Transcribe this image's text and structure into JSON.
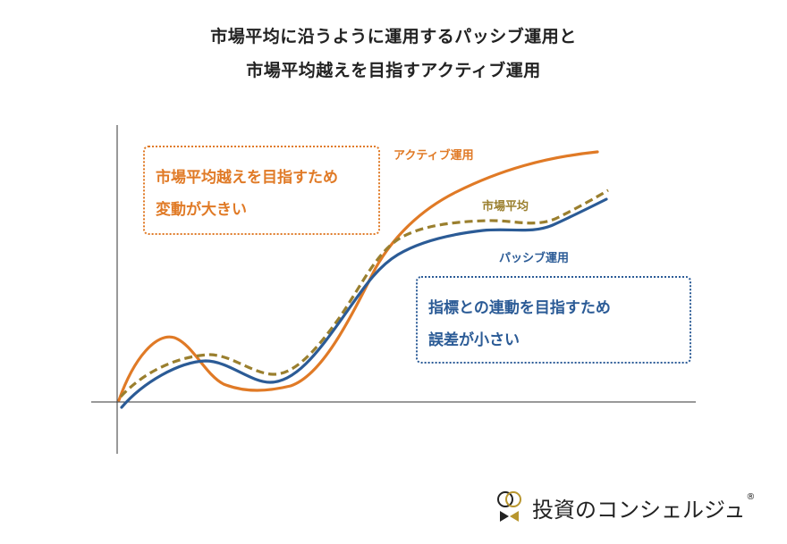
{
  "title": {
    "line1": "市場平均に沿うように運用するパッシブ運用と",
    "line2": "市場平均越えを目指すアクティブ運用"
  },
  "callouts": {
    "active": {
      "line1": "市場平均越えを目指すため",
      "line2": "変動が大きい"
    },
    "passive": {
      "line1": "指標との連動を目指すため",
      "line2": "誤差が小さい"
    }
  },
  "series_labels": {
    "active": "アクティブ運用",
    "market": "市場平均",
    "passive": "パッシブ運用"
  },
  "colors": {
    "active": "#e07a26",
    "market": "#9a7f2e",
    "passive": "#2b5b96",
    "axis": "#333333"
  },
  "logo": {
    "icon": "rings-logo-icon",
    "text": "投資のコンシェルジュ",
    "registered": "®"
  }
}
